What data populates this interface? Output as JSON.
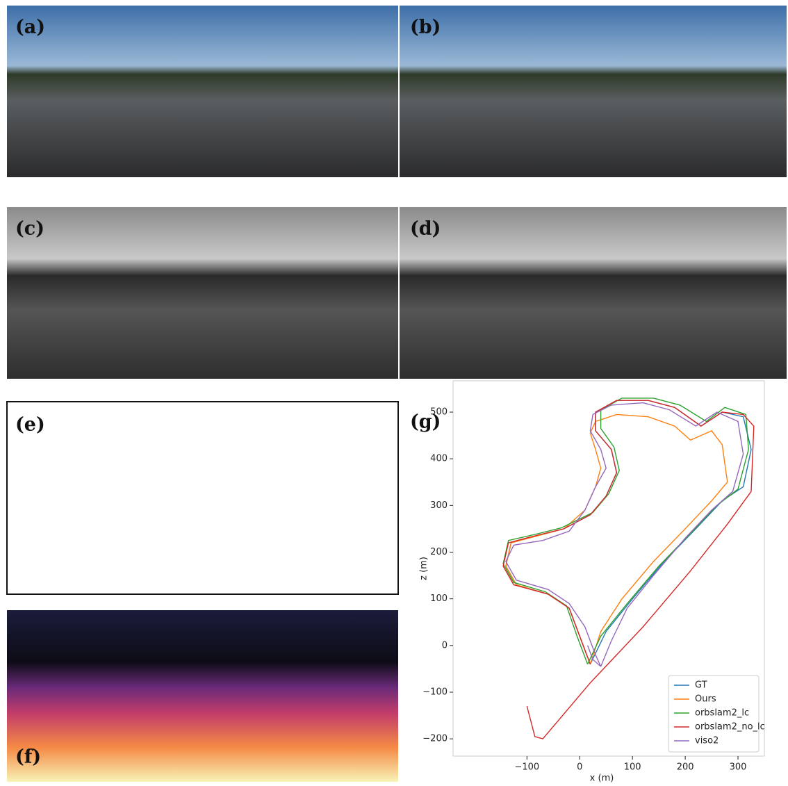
{
  "panels": [
    {
      "label": "(a)"
    },
    {
      "label": "(b)"
    },
    {
      "label": "(c)"
    },
    {
      "label": "(d)"
    },
    {
      "label": "(e)"
    },
    {
      "label": "(f)"
    },
    {
      "label": "(g)"
    }
  ],
  "chart_data": {
    "type": "line",
    "xlabel": "x (m)",
    "ylabel": "z (m)",
    "xlim": [
      -240,
      350
    ],
    "ylim": [
      -237,
      567
    ],
    "xticks": [
      {
        "value": -100,
        "label": "−100"
      },
      0,
      100,
      200,
      300
    ],
    "yticks": [
      {
        "value": -200,
        "label": "−200"
      },
      {
        "value": -100,
        "label": "−100"
      },
      0,
      100,
      200,
      300,
      400,
      500
    ],
    "legend": "lower right",
    "series": [
      {
        "name": "GT",
        "color": "#1f77b4",
        "x": [
          20,
          0,
          -20,
          -60,
          -120,
          -140,
          -130,
          -80,
          -30,
          20,
          50,
          70,
          60,
          30,
          30,
          70,
          130,
          180,
          230,
          270,
          310,
          325,
          310,
          270,
          220,
          160,
          100,
          50,
          20
        ],
        "values": [
          -40,
          20,
          80,
          110,
          130,
          170,
          220,
          235,
          250,
          280,
          320,
          370,
          420,
          460,
          500,
          525,
          525,
          510,
          470,
          500,
          490,
          420,
          340,
          310,
          250,
          180,
          100,
          30,
          -40
        ]
      },
      {
        "name": "Ours",
        "color": "#ff7f0e",
        "x": [
          20,
          0,
          -20,
          -60,
          -120,
          -140,
          -130,
          -80,
          -30,
          10,
          30,
          40,
          30,
          20,
          30,
          70,
          130,
          180,
          210,
          250,
          270,
          280,
          250,
          200,
          140,
          80,
          40,
          20
        ],
        "values": [
          -40,
          20,
          80,
          110,
          130,
          170,
          220,
          235,
          250,
          290,
          340,
          380,
          420,
          455,
          480,
          495,
          490,
          470,
          440,
          460,
          430,
          350,
          310,
          250,
          180,
          100,
          30,
          -40
        ]
      },
      {
        "name": "orbslam2_lc",
        "color": "#2ca02c",
        "x": [
          15,
          -5,
          -25,
          -65,
          -125,
          -145,
          -135,
          -85,
          -35,
          25,
          55,
          75,
          65,
          40,
          40,
          80,
          140,
          190,
          240,
          275,
          315,
          320,
          300,
          260,
          210,
          150,
          90,
          40,
          15
        ],
        "values": [
          -40,
          20,
          85,
          115,
          135,
          175,
          225,
          238,
          252,
          285,
          325,
          375,
          425,
          465,
          505,
          530,
          530,
          515,
          480,
          510,
          495,
          420,
          335,
          300,
          240,
          170,
          90,
          20,
          -40
        ]
      },
      {
        "name": "orbslam2_no_lc",
        "color": "#d62728",
        "x": [
          20,
          0,
          -20,
          -60,
          -125,
          -145,
          -135,
          -85,
          -30,
          20,
          50,
          70,
          60,
          30,
          30,
          70,
          130,
          180,
          230,
          270,
          310,
          330,
          325,
          280,
          210,
          120,
          20,
          -40,
          -70,
          -85,
          -100
        ],
        "values": [
          -40,
          20,
          80,
          110,
          130,
          170,
          220,
          235,
          250,
          280,
          320,
          370,
          420,
          460,
          500,
          525,
          525,
          510,
          470,
          500,
          495,
          470,
          330,
          260,
          160,
          40,
          -80,
          -160,
          -200,
          -195,
          -130
        ]
      },
      {
        "name": "viso2",
        "color": "#9467bd",
        "x": [
          15,
          25,
          40,
          30,
          10,
          -20,
          -60,
          -120,
          -140,
          -125,
          -70,
          -20,
          10,
          30,
          50,
          40,
          20,
          25,
          60,
          120,
          170,
          220,
          260,
          300,
          310,
          290,
          250,
          200,
          140,
          90,
          60,
          40
        ],
        "values": [
          0,
          -30,
          -45,
          -20,
          40,
          90,
          120,
          140,
          180,
          215,
          225,
          245,
          290,
          340,
          380,
          420,
          460,
          495,
          515,
          520,
          505,
          470,
          500,
          480,
          410,
          330,
          290,
          230,
          150,
          80,
          10,
          -45
        ]
      }
    ]
  }
}
